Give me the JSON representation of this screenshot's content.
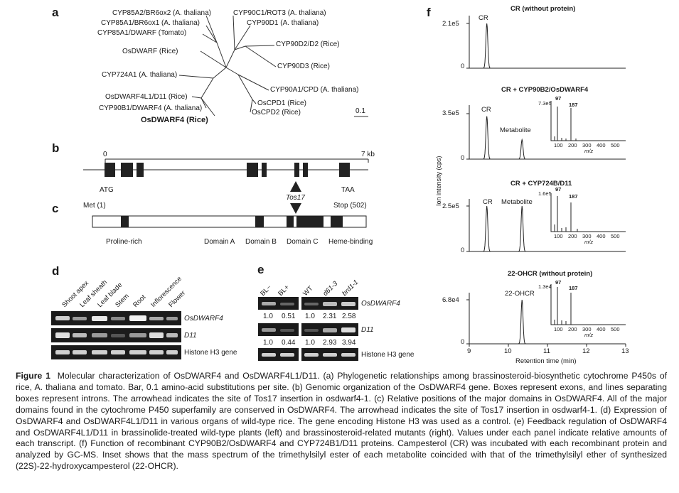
{
  "panels": {
    "a": "a",
    "b": "b",
    "c": "c",
    "d": "d",
    "e": "e",
    "f": "f"
  },
  "tree": {
    "taxa": [
      "CYP85A2/BR6ox2 (A. thaliana)",
      "CYP85A1/BR6ox1 (A. thaliana)",
      "CYP85A1/DWARF (Tomato)",
      "OsDWARF (Rice)",
      "CYP724A1 (A. thaliana)",
      "OsDWARF4L1/D11 (Rice)",
      "CYP90B1/DWARF4 (A. thaliana)",
      "OsDWARF4 (Rice)",
      "CYP90C1/ROT3 (A. thaliana)",
      "CYP90D1 (A. thaliana)",
      "CYP90D2/D2 (Rice)",
      "CYP90D3 (Rice)",
      "CYP90A1/CPD (A. thaliana)",
      "OsCPD1 (Rice)",
      "OsCPD2 (Rice)"
    ],
    "scale": "0.1"
  },
  "gene": {
    "start": "0",
    "end": "7 kb",
    "atg": "ATG",
    "taa": "TAA",
    "insertion": "Tos17"
  },
  "protein": {
    "start": "Met (1)",
    "stop": "Stop (502)",
    "domains": [
      "Proline-rich",
      "Domain A",
      "Domain B",
      "Domain C",
      "Heme-binding"
    ]
  },
  "panel_d": {
    "lanes": [
      "Shoot apex",
      "Leaf sheath",
      "Leaf blade",
      "Stem",
      "Root",
      "Inflorescence",
      "Flower"
    ],
    "genes": [
      "OsDWARF4",
      "D11",
      "Histone H3 gene"
    ]
  },
  "panel_e": {
    "lanes_left": [
      "BL−",
      "BL+"
    ],
    "lanes_right": [
      "WT",
      "d61-3",
      "brd1-1"
    ],
    "genes": [
      "OsDWARF4",
      "D11",
      "Histone H3 gene"
    ],
    "row1_values": [
      "1.0",
      "0.51",
      "1.0",
      "2.31",
      "2.58"
    ],
    "row2_values": [
      "1.0",
      "0.44",
      "1.0",
      "2.93",
      "3.94"
    ]
  },
  "panel_f": {
    "ylabel": "Ion intensity (cps)",
    "xlabel": "Retention time (min)",
    "xticks": [
      "9",
      "10",
      "11",
      "12",
      "13"
    ],
    "inset_xticks": [
      "100",
      "200",
      "300",
      "400",
      "500"
    ],
    "inset_xlabel": "m/z",
    "charts": [
      {
        "title": "CR (without protein)",
        "ymax": "2.1e5",
        "zero": "0",
        "peaks": [
          "CR"
        ],
        "inset": null
      },
      {
        "title": "CR + CYP90B2/OsDWARF4",
        "ymax": "3.5e5",
        "zero": "0",
        "peaks": [
          "CR",
          "Metabolite"
        ],
        "inset": {
          "ymax": "7.3e5",
          "p1": "97",
          "p2": "187"
        }
      },
      {
        "title": "CR + CYP724B/D11",
        "ymax": "2.5e5",
        "zero": "0",
        "peaks": [
          "CR",
          "Metabolite"
        ],
        "inset": {
          "ymax": "1.6e5",
          "p1": "97",
          "p2": "187"
        }
      },
      {
        "title": "22-OHCR (without protein)",
        "ymax": "6.8e4",
        "zero": "0",
        "peaks": [
          "22-OHCR"
        ],
        "inset": {
          "ymax": "1.3e4",
          "p1": "97",
          "p2": "187"
        }
      }
    ]
  },
  "chart_data": [
    {
      "type": "line",
      "title": "CR (without protein)",
      "x_range": [
        9,
        13
      ],
      "xlabel": "Retention time (min)",
      "ylabel": "Ion intensity (cps)",
      "y_max": 210000,
      "peaks": [
        {
          "name": "CR",
          "x": 9.45,
          "y": 210000
        }
      ]
    },
    {
      "type": "line",
      "title": "CR + CYP90B2/OsDWARF4",
      "x_range": [
        9,
        13
      ],
      "y_max": 350000,
      "peaks": [
        {
          "name": "CR",
          "x": 9.45,
          "y": 330000
        },
        {
          "name": "Metabolite",
          "x": 10.35,
          "y": 150000
        }
      ]
    },
    {
      "type": "line",
      "title": "CR + CYP724B/D11",
      "x_range": [
        9,
        13
      ],
      "y_max": 250000,
      "peaks": [
        {
          "name": "CR",
          "x": 9.45,
          "y": 250000
        },
        {
          "name": "Metabolite",
          "x": 10.35,
          "y": 250000
        }
      ]
    },
    {
      "type": "line",
      "title": "22-OHCR (without protein)",
      "x_range": [
        9,
        13
      ],
      "y_max": 68000,
      "peaks": [
        {
          "name": "22-OHCR",
          "x": 10.35,
          "y": 68000
        }
      ]
    }
  ],
  "caption": {
    "label": "Figure 1",
    "text": "Molecular characterization of OsDWARF4 and OsDWARF4L1/D11. (a) Phylogenetic relationships among brassinosteroid-biosynthetic cytochrome P450s of rice, A. thaliana and tomato. Bar, 0.1 amino-acid substitutions per site. (b) Genomic organization of the OsDWARF4 gene. Boxes represent exons, and lines separating boxes represent introns. The arrowhead indicates the site of Tos17 insertion in osdwarf4-1. (c) Relative positions of the major domains in OsDWARF4. All of the major domains found in the cytochrome P450 superfamily are conserved in OsDWARF4. The arrowhead indicates the site of Tos17 insertion in osdwarf4-1. (d) Expression of OsDWARF4 and OsDWARF4L1/D11 in various organs of wild-type rice. The gene encoding Histone H3 was used as a control. (e) Feedback regulation of OsDWARF4 and OsDWARF4L1/D11 in brassinolide-treated wild-type plants (left) and brassinosteroid-related mutants (right). Values under each panel indicate relative amounts of each transcript. (f) Function of recombinant CYP90B2/OsDWARF4 and CYP724B1/D11 proteins. Campesterol (CR) was incubated with each recombinant protein and analyzed by GC-MS. Inset shows that the mass spectrum of the trimethylsilyl ester of each metabolite coincided with that of the trimethylsilyl ether of synthesized (22S)-22-hydroxycampesterol (22-OHCR)."
  }
}
